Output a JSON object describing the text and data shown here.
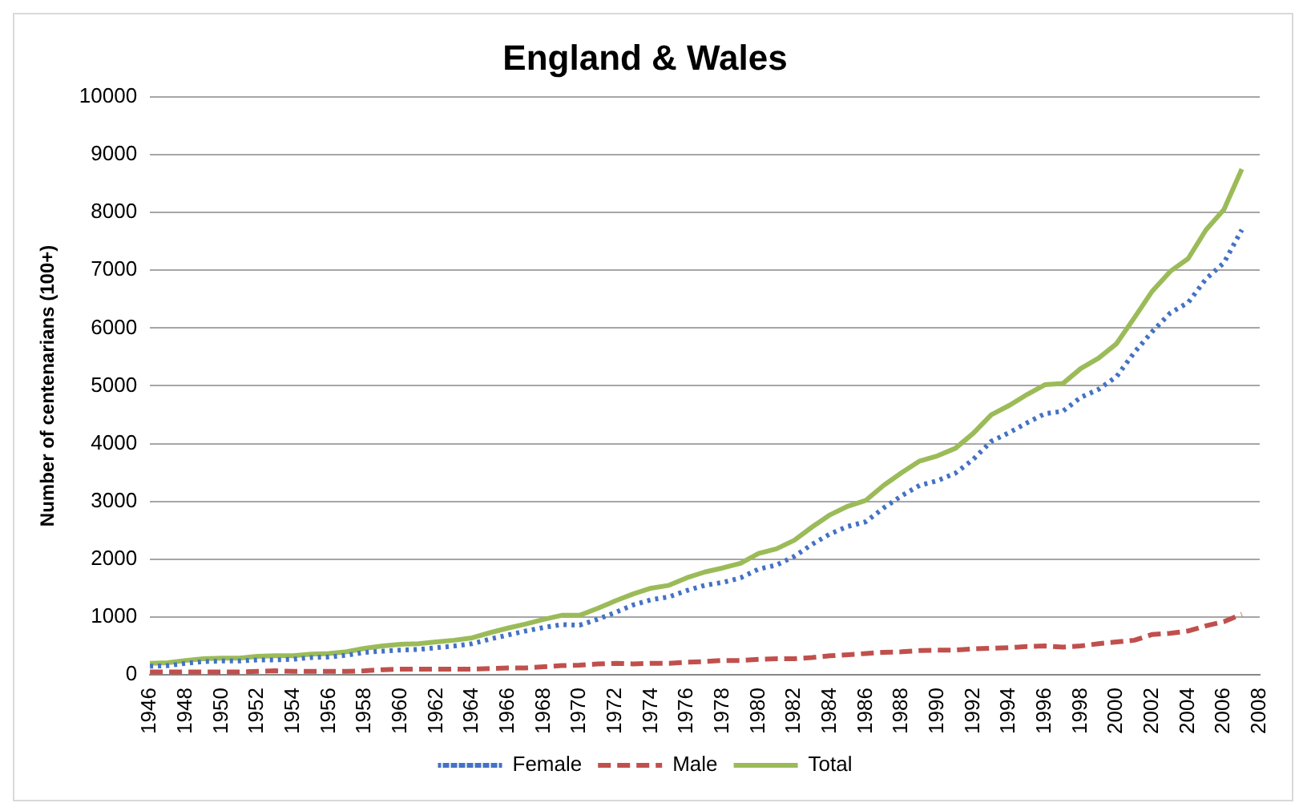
{
  "chart_data": {
    "type": "line",
    "title": "England & Wales",
    "ylabel": "Number of centenarians (100+)",
    "categories": [
      "1946",
      null,
      "1948",
      null,
      "1950",
      null,
      "1952",
      null,
      "1954",
      null,
      "1956",
      null,
      "1958",
      null,
      "1960",
      null,
      "1962",
      null,
      "1964",
      null,
      "1966",
      null,
      "1968",
      null,
      "1970",
      null,
      "1972",
      null,
      "1974",
      null,
      "1976",
      null,
      "1978",
      null,
      "1980",
      null,
      "1982",
      null,
      "1984",
      null,
      "1986",
      null,
      "1988",
      null,
      "1990",
      null,
      "1992",
      null,
      "1994",
      null,
      "1996",
      null,
      "1998",
      null,
      "2000",
      null,
      "2002",
      null,
      "2004",
      null,
      "2006",
      null,
      "2008"
    ],
    "series": [
      {
        "name": "Female",
        "color": "#4472c4",
        "line_style": "dotted",
        "values": [
          150,
          160,
          200,
          230,
          240,
          240,
          260,
          260,
          270,
          300,
          310,
          340,
          390,
          410,
          430,
          440,
          470,
          500,
          540,
          620,
          690,
          760,
          820,
          870,
          860,
          960,
          1080,
          1210,
          1300,
          1350,
          1460,
          1550,
          1600,
          1680,
          1830,
          1900,
          2050,
          2260,
          2440,
          2570,
          2650,
          2890,
          3100,
          3280,
          3360,
          3490,
          3730,
          4040,
          4190,
          4360,
          4520,
          4560,
          4800,
          4940,
          5160,
          5580,
          5940,
          6260,
          6440,
          6850,
          7130,
          7700,
          null
        ]
      },
      {
        "name": "Male",
        "color": "#c0504d",
        "line_style": "dashed",
        "values": [
          50,
          50,
          50,
          50,
          50,
          50,
          60,
          70,
          60,
          60,
          60,
          60,
          70,
          90,
          100,
          100,
          100,
          100,
          100,
          110,
          120,
          120,
          140,
          160,
          170,
          190,
          200,
          190,
          200,
          200,
          220,
          230,
          250,
          250,
          270,
          280,
          280,
          300,
          330,
          350,
          370,
          390,
          400,
          420,
          430,
          430,
          450,
          460,
          470,
          490,
          500,
          480,
          500,
          540,
          570,
          600,
          700,
          720,
          760,
          850,
          920,
          1050,
          null
        ]
      },
      {
        "name": "Total",
        "color": "#9bbb59",
        "line_style": "solid",
        "values": [
          200,
          210,
          250,
          280,
          290,
          290,
          320,
          330,
          330,
          360,
          370,
          400,
          460,
          500,
          530,
          540,
          570,
          600,
          640,
          730,
          810,
          880,
          960,
          1030,
          1030,
          1150,
          1280,
          1400,
          1500,
          1550,
          1680,
          1780,
          1850,
          1930,
          2100,
          2180,
          2330,
          2560,
          2770,
          2920,
          3020,
          3280,
          3500,
          3700,
          3790,
          3920,
          4180,
          4500,
          4660,
          4850,
          5020,
          5040,
          5300,
          5480,
          5730,
          6180,
          6640,
          6980,
          7200,
          7700,
          8050,
          8750,
          null
        ]
      }
    ],
    "ylim": [
      0,
      10000
    ],
    "yticks": [
      0,
      1000,
      2000,
      3000,
      4000,
      5000,
      6000,
      7000,
      8000,
      9000,
      10000
    ],
    "grid": "y",
    "legend": "bottom",
    "marker": "none"
  }
}
